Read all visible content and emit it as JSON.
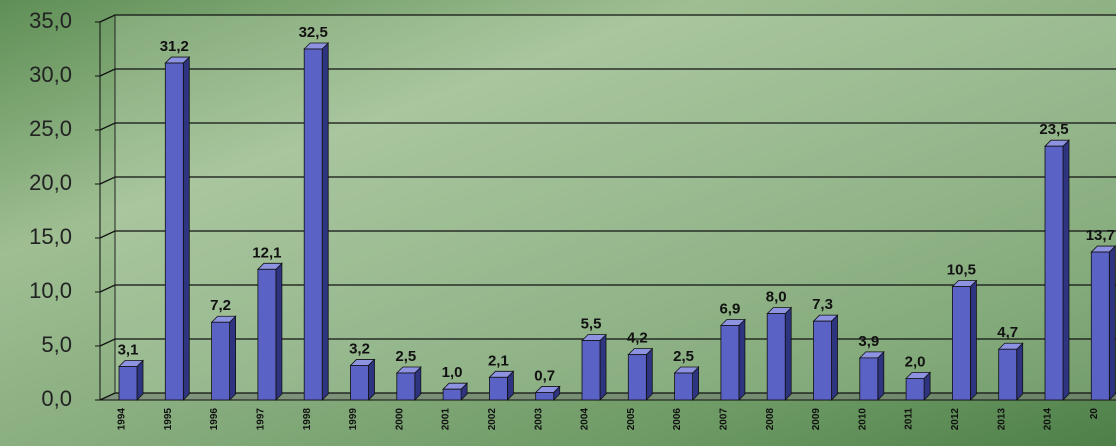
{
  "chart_data": {
    "type": "bar",
    "categories": [
      "1994",
      "1995",
      "1996",
      "1997",
      "1998",
      "1999",
      "2000",
      "2001",
      "2002",
      "2003",
      "2004",
      "2005",
      "2006",
      "2007",
      "2008",
      "2009",
      "2010",
      "2011",
      "2012",
      "2013",
      "2014",
      "20"
    ],
    "values": [
      3.1,
      31.2,
      7.2,
      12.1,
      32.5,
      3.2,
      2.5,
      1.0,
      2.1,
      0.7,
      5.5,
      4.2,
      2.5,
      6.9,
      8.0,
      7.3,
      3.9,
      2.0,
      10.5,
      4.7,
      23.5,
      13.7
    ],
    "value_labels": [
      "3,1",
      "31,2",
      "7,2",
      "12,1",
      "32,5",
      "3,2",
      "2,5",
      "1,0",
      "2,1",
      "0,7",
      "5,5",
      "4,2",
      "2,5",
      "6,9",
      "8,0",
      "7,3",
      "3,9",
      "2,0",
      "10,5",
      "4,7",
      "23,5",
      "13,7"
    ],
    "color": "#5a62c6",
    "ylim": [
      0,
      35
    ],
    "yticks": [
      {
        "value": 0,
        "label": "0,0"
      },
      {
        "value": 5,
        "label": "5,0"
      },
      {
        "value": 10,
        "label": "10,0"
      },
      {
        "value": 15,
        "label": "15,0"
      },
      {
        "value": 20,
        "label": "20,0"
      },
      {
        "value": 25,
        "label": "25,0"
      },
      {
        "value": 30,
        "label": "30,0"
      },
      {
        "value": 35,
        "label": "35,0"
      }
    ],
    "grid": true
  }
}
